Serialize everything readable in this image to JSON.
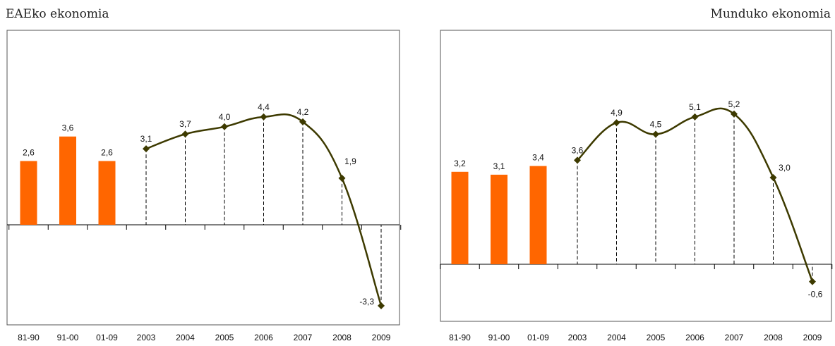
{
  "chart_data": [
    {
      "type": "bar+line",
      "title": "EAEko ekonomia",
      "categories": [
        "81-90",
        "91-00",
        "01-09",
        "2003",
        "2004",
        "2005",
        "2006",
        "2007",
        "2008",
        "2009"
      ],
      "bars": {
        "categories": [
          "81-90",
          "91-00",
          "01-09"
        ],
        "values": [
          2.6,
          3.6,
          2.6
        ],
        "labels": [
          "2,6",
          "3,6",
          "2,6"
        ]
      },
      "line": {
        "categories": [
          "2003",
          "2004",
          "2005",
          "2006",
          "2007",
          "2008",
          "2009"
        ],
        "values": [
          3.1,
          3.7,
          4.0,
          4.4,
          4.2,
          1.9,
          -3.3
        ],
        "labels": [
          "3,1",
          "3,7",
          "4,0",
          "4,4",
          "4,2",
          "1,9",
          "-3,3"
        ]
      },
      "ylim": [
        -4.0,
        8.0
      ],
      "grid": false
    },
    {
      "type": "bar+line",
      "title": "Munduko ekonomia",
      "categories": [
        "81-90",
        "91-00",
        "01-09",
        "2003",
        "2004",
        "2005",
        "2006",
        "2007",
        "2008",
        "2009"
      ],
      "bars": {
        "categories": [
          "81-90",
          "91-00",
          "01-09"
        ],
        "values": [
          3.2,
          3.1,
          3.4
        ],
        "labels": [
          "3,2",
          "3,1",
          "3,4"
        ]
      },
      "line": {
        "categories": [
          "2003",
          "2004",
          "2005",
          "2006",
          "2007",
          "2008",
          "2009"
        ],
        "values": [
          3.6,
          4.9,
          4.5,
          5.1,
          5.2,
          3.0,
          -0.6
        ],
        "labels": [
          "3,6",
          "4,9",
          "4,5",
          "5,1",
          "5,2",
          "3,0",
          "-0,6"
        ]
      },
      "ylim": [
        -2.0,
        8.0
      ],
      "grid": false
    }
  ],
  "colors": {
    "bar": "#ff6600",
    "line": "#3d3a00",
    "marker": "#3d3a00",
    "frame": "#555555",
    "dash": "#000000"
  }
}
